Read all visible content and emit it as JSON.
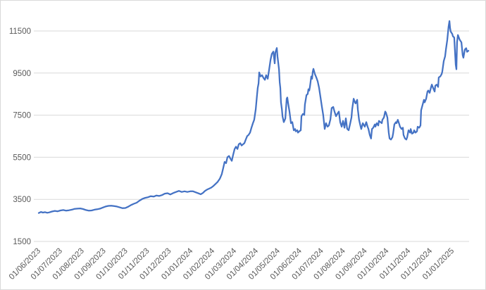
{
  "figure": {
    "background": "#FFFFFF",
    "border_color": "#D9D9D9",
    "grid_color": "#D9D9D9",
    "axis_color": "#D9D9D9",
    "label_color": "#595959",
    "line_color": "#4472C4"
  },
  "chart_data": {
    "type": "line",
    "title": "",
    "xlabel": "",
    "ylabel": "",
    "legend": "none",
    "grid": "horizontal",
    "y_ticks": [
      1500,
      3500,
      5500,
      7500,
      9500,
      11500
    ],
    "y_axis_min": 1500,
    "x_unit": "months_since_first_tick",
    "x_tick_labels": [
      "01/06/2023",
      "01/07/2023",
      "01/08/2023",
      "01/09/2023",
      "01/10/2023",
      "01/11/2023",
      "01/12/2023",
      "01/01/2024",
      "01/02/2024",
      "01/03/2024",
      "01/04/2024",
      "01/05/2024",
      "01/06/2024",
      "01/07/2024",
      "01/08/2024",
      "01/09/2024",
      "01/10/2024",
      "01/11/2024",
      "01/12/2024",
      "01/01/2025"
    ],
    "series": [
      {
        "name": "value",
        "color": "#4472C4",
        "points": [
          [
            0.0,
            2850
          ],
          [
            0.1,
            2900
          ],
          [
            0.19,
            2870
          ],
          [
            0.29,
            2890
          ],
          [
            0.39,
            2860
          ],
          [
            0.49,
            2880
          ],
          [
            0.61,
            2920
          ],
          [
            0.74,
            2950
          ],
          [
            0.87,
            2930
          ],
          [
            1.0,
            2970
          ],
          [
            1.13,
            2990
          ],
          [
            1.26,
            2960
          ],
          [
            1.39,
            2980
          ],
          [
            1.52,
            3010
          ],
          [
            1.65,
            3050
          ],
          [
            1.78,
            3060
          ],
          [
            1.91,
            3070
          ],
          [
            2.04,
            3040
          ],
          [
            2.17,
            2990
          ],
          [
            2.3,
            2960
          ],
          [
            2.43,
            2970
          ],
          [
            2.56,
            3010
          ],
          [
            2.69,
            3030
          ],
          [
            2.82,
            3060
          ],
          [
            2.94,
            3110
          ],
          [
            3.07,
            3160
          ],
          [
            3.2,
            3190
          ],
          [
            3.33,
            3200
          ],
          [
            3.46,
            3180
          ],
          [
            3.59,
            3160
          ],
          [
            3.72,
            3120
          ],
          [
            3.85,
            3080
          ],
          [
            3.98,
            3090
          ],
          [
            4.11,
            3150
          ],
          [
            4.24,
            3230
          ],
          [
            4.37,
            3290
          ],
          [
            4.5,
            3340
          ],
          [
            4.63,
            3440
          ],
          [
            4.76,
            3520
          ],
          [
            4.89,
            3570
          ],
          [
            5.02,
            3600
          ],
          [
            5.15,
            3650
          ],
          [
            5.28,
            3630
          ],
          [
            5.4,
            3680
          ],
          [
            5.53,
            3660
          ],
          [
            5.66,
            3700
          ],
          [
            5.79,
            3770
          ],
          [
            5.92,
            3790
          ],
          [
            6.05,
            3730
          ],
          [
            6.18,
            3800
          ],
          [
            6.31,
            3850
          ],
          [
            6.44,
            3900
          ],
          [
            6.57,
            3850
          ],
          [
            6.7,
            3880
          ],
          [
            6.83,
            3850
          ],
          [
            6.96,
            3880
          ],
          [
            7.09,
            3880
          ],
          [
            7.22,
            3830
          ],
          [
            7.35,
            3780
          ],
          [
            7.44,
            3740
          ],
          [
            7.54,
            3800
          ],
          [
            7.64,
            3900
          ],
          [
            7.73,
            3960
          ],
          [
            7.83,
            4010
          ],
          [
            7.93,
            4060
          ],
          [
            8.03,
            4140
          ],
          [
            8.12,
            4230
          ],
          [
            8.22,
            4330
          ],
          [
            8.32,
            4480
          ],
          [
            8.41,
            4700
          ],
          [
            8.48,
            5000
          ],
          [
            8.54,
            5280
          ],
          [
            8.61,
            5220
          ],
          [
            8.67,
            5500
          ],
          [
            8.74,
            5560
          ],
          [
            8.8,
            5450
          ],
          [
            8.87,
            5330
          ],
          [
            8.93,
            5600
          ],
          [
            9.0,
            5890
          ],
          [
            9.06,
            6000
          ],
          [
            9.13,
            5890
          ],
          [
            9.19,
            6120
          ],
          [
            9.26,
            6170
          ],
          [
            9.32,
            6060
          ],
          [
            9.39,
            6120
          ],
          [
            9.45,
            6170
          ],
          [
            9.51,
            6340
          ],
          [
            9.58,
            6510
          ],
          [
            9.64,
            6560
          ],
          [
            9.71,
            6670
          ],
          [
            9.77,
            6890
          ],
          [
            9.84,
            7120
          ],
          [
            9.9,
            7280
          ],
          [
            9.97,
            7780
          ],
          [
            10.03,
            8450
          ],
          [
            10.06,
            8790
          ],
          [
            10.1,
            9010
          ],
          [
            10.13,
            9530
          ],
          [
            10.19,
            9340
          ],
          [
            10.26,
            9400
          ],
          [
            10.32,
            9280
          ],
          [
            10.39,
            9180
          ],
          [
            10.45,
            9400
          ],
          [
            10.52,
            9230
          ],
          [
            10.58,
            9620
          ],
          [
            10.65,
            10130
          ],
          [
            10.71,
            10410
          ],
          [
            10.78,
            10520
          ],
          [
            10.84,
            9960
          ],
          [
            10.87,
            10470
          ],
          [
            10.94,
            10690
          ],
          [
            10.97,
            10290
          ],
          [
            11.04,
            9680
          ],
          [
            11.07,
            9070
          ],
          [
            11.1,
            8790
          ],
          [
            11.13,
            8110
          ],
          [
            11.17,
            7780
          ],
          [
            11.2,
            7450
          ],
          [
            11.26,
            7170
          ],
          [
            11.33,
            7340
          ],
          [
            11.39,
            8280
          ],
          [
            11.42,
            8340
          ],
          [
            11.46,
            8060
          ],
          [
            11.52,
            7670
          ],
          [
            11.59,
            7120
          ],
          [
            11.65,
            7170
          ],
          [
            11.72,
            6780
          ],
          [
            11.78,
            6840
          ],
          [
            11.81,
            6730
          ],
          [
            11.88,
            6780
          ],
          [
            11.91,
            6670
          ],
          [
            11.97,
            6730
          ],
          [
            12.04,
            6780
          ],
          [
            12.07,
            7450
          ],
          [
            12.14,
            7560
          ],
          [
            12.2,
            7510
          ],
          [
            12.23,
            8010
          ],
          [
            12.3,
            8450
          ],
          [
            12.36,
            8510
          ],
          [
            12.39,
            8730
          ],
          [
            12.43,
            8670
          ],
          [
            12.46,
            8840
          ],
          [
            12.49,
            9070
          ],
          [
            12.52,
            9340
          ],
          [
            12.56,
            9230
          ],
          [
            12.59,
            9560
          ],
          [
            12.62,
            9700
          ],
          [
            12.69,
            9450
          ],
          [
            12.75,
            9300
          ],
          [
            12.82,
            9100
          ],
          [
            12.88,
            8800
          ],
          [
            12.94,
            8400
          ],
          [
            13.01,
            7900
          ],
          [
            13.07,
            7500
          ],
          [
            13.14,
            6840
          ],
          [
            13.2,
            7120
          ],
          [
            13.27,
            6950
          ],
          [
            13.33,
            7010
          ],
          [
            13.4,
            7300
          ],
          [
            13.46,
            7840
          ],
          [
            13.53,
            7890
          ],
          [
            13.59,
            7670
          ],
          [
            13.66,
            7450
          ],
          [
            13.72,
            7560
          ],
          [
            13.79,
            7670
          ],
          [
            13.85,
            7170
          ],
          [
            13.92,
            6950
          ],
          [
            13.98,
            7230
          ],
          [
            14.05,
            6900
          ],
          [
            14.11,
            7350
          ],
          [
            14.17,
            6850
          ],
          [
            14.24,
            6780
          ],
          [
            14.3,
            7060
          ],
          [
            14.37,
            7390
          ],
          [
            14.4,
            7780
          ],
          [
            14.47,
            8280
          ],
          [
            14.53,
            8110
          ],
          [
            14.56,
            8060
          ],
          [
            14.63,
            8230
          ],
          [
            14.66,
            7780
          ],
          [
            14.72,
            7280
          ],
          [
            14.79,
            6950
          ],
          [
            14.82,
            6840
          ],
          [
            14.89,
            7120
          ],
          [
            14.95,
            7010
          ],
          [
            14.98,
            6950
          ],
          [
            15.05,
            7170
          ],
          [
            15.11,
            6950
          ],
          [
            15.15,
            6840
          ],
          [
            15.21,
            6560
          ],
          [
            15.27,
            6390
          ],
          [
            15.31,
            6840
          ],
          [
            15.37,
            6900
          ],
          [
            15.44,
            7060
          ],
          [
            15.47,
            6950
          ],
          [
            15.53,
            7120
          ],
          [
            15.6,
            7010
          ],
          [
            15.63,
            7230
          ],
          [
            15.7,
            7170
          ],
          [
            15.76,
            7120
          ],
          [
            15.79,
            7280
          ],
          [
            15.86,
            7390
          ],
          [
            15.92,
            7670
          ],
          [
            15.95,
            7620
          ],
          [
            16.02,
            7390
          ],
          [
            16.08,
            6670
          ],
          [
            16.12,
            6390
          ],
          [
            16.18,
            6340
          ],
          [
            16.25,
            6450
          ],
          [
            16.28,
            6620
          ],
          [
            16.34,
            7060
          ],
          [
            16.41,
            7170
          ],
          [
            16.44,
            7120
          ],
          [
            16.5,
            7280
          ],
          [
            16.57,
            7060
          ],
          [
            16.6,
            6950
          ],
          [
            16.67,
            6840
          ],
          [
            16.73,
            6900
          ],
          [
            16.76,
            6560
          ],
          [
            16.83,
            6390
          ],
          [
            16.89,
            6340
          ],
          [
            16.93,
            6450
          ],
          [
            16.99,
            6780
          ],
          [
            17.06,
            6670
          ],
          [
            17.09,
            6840
          ],
          [
            17.15,
            6620
          ],
          [
            17.22,
            6670
          ],
          [
            17.25,
            6780
          ],
          [
            17.31,
            6670
          ],
          [
            17.38,
            6730
          ],
          [
            17.41,
            6950
          ],
          [
            17.48,
            6900
          ],
          [
            17.54,
            7010
          ],
          [
            17.57,
            7730
          ],
          [
            17.64,
            8010
          ],
          [
            17.7,
            8230
          ],
          [
            17.73,
            8110
          ],
          [
            17.8,
            8280
          ],
          [
            17.86,
            8620
          ],
          [
            17.9,
            8670
          ],
          [
            17.96,
            8560
          ],
          [
            18.03,
            8840
          ],
          [
            18.06,
            8950
          ],
          [
            18.12,
            8790
          ],
          [
            18.19,
            8620
          ],
          [
            18.22,
            8900
          ],
          [
            18.28,
            8950
          ],
          [
            18.35,
            8840
          ],
          [
            18.38,
            9290
          ],
          [
            18.45,
            9340
          ],
          [
            18.51,
            9450
          ],
          [
            18.54,
            9560
          ],
          [
            18.61,
            10070
          ],
          [
            18.67,
            10290
          ],
          [
            18.71,
            10620
          ],
          [
            18.77,
            11070
          ],
          [
            18.83,
            11690
          ],
          [
            18.87,
            11970
          ],
          [
            18.9,
            11640
          ],
          [
            18.93,
            11470
          ],
          [
            19.0,
            11360
          ],
          [
            19.03,
            11250
          ],
          [
            19.09,
            11190
          ],
          [
            19.16,
            9900
          ],
          [
            19.19,
            9680
          ],
          [
            19.22,
            10960
          ],
          [
            19.26,
            11310
          ],
          [
            19.32,
            11140
          ],
          [
            19.35,
            11070
          ],
          [
            19.42,
            10960
          ],
          [
            19.48,
            10350
          ],
          [
            19.51,
            10230
          ],
          [
            19.58,
            10620
          ],
          [
            19.64,
            10680
          ],
          [
            19.68,
            10510
          ],
          [
            19.74,
            10560
          ]
        ]
      }
    ]
  }
}
